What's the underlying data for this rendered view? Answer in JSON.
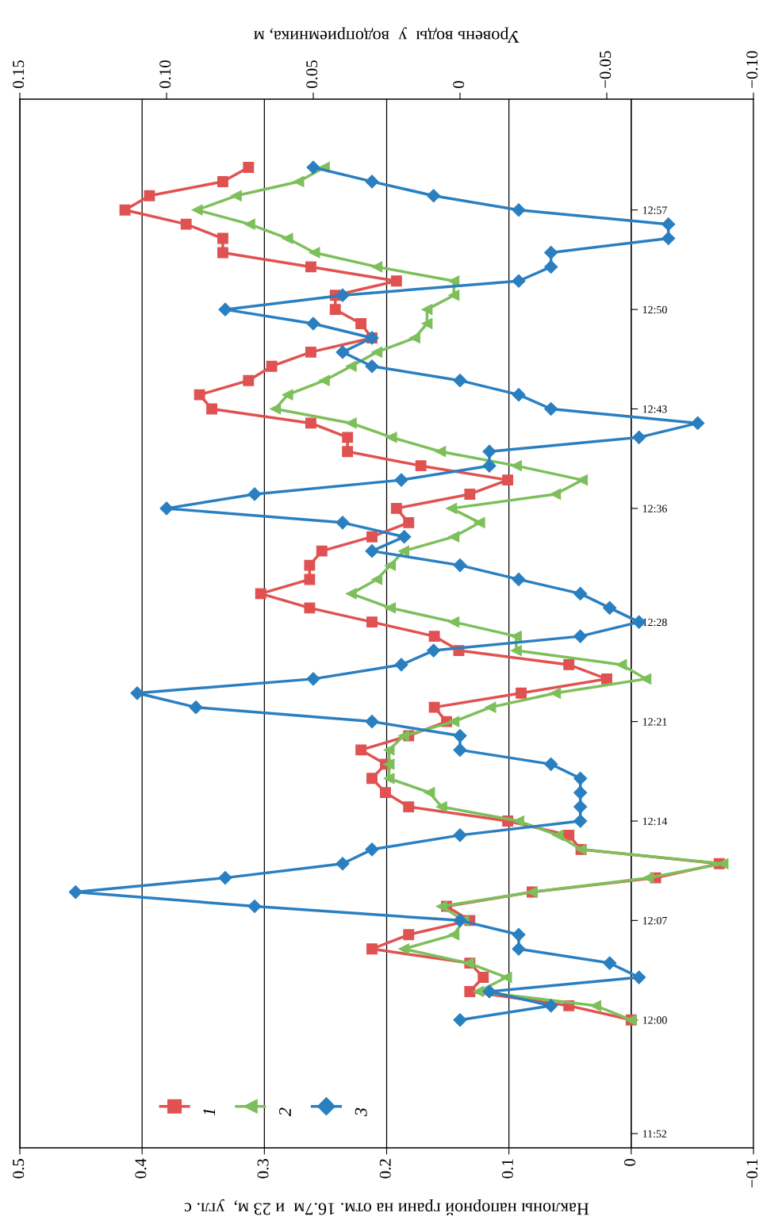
{
  "chart_data": {
    "type": "line",
    "xlabel": "Наклоны напорной грани на отм. 16.7м  и 23 м,  угл. с",
    "x2label": "Уровень воды  у  водоприемника, м",
    "series": [
      {
        "name": "1",
        "color": "#e05252",
        "marker": "square",
        "x": [
          0.0,
          0.051,
          0.132,
          0.121,
          0.132,
          0.212,
          0.182,
          0.132,
          0.151,
          0.081,
          -0.02,
          -0.072,
          0.041,
          0.051,
          0.101,
          0.182,
          0.201,
          0.212,
          0.201,
          0.221,
          0.182,
          0.151,
          0.161,
          0.09,
          0.02,
          0.051,
          0.141,
          0.161,
          0.212,
          0.263,
          0.303,
          0.263,
          0.263,
          0.253,
          0.212,
          0.182,
          0.192,
          0.132,
          0.101,
          0.172,
          0.232,
          0.232,
          0.262,
          0.343,
          0.353,
          0.313,
          0.294,
          0.262,
          0.212,
          0.221,
          0.242,
          0.242,
          0.192,
          0.262,
          0.334,
          0.334,
          0.364,
          0.414,
          0.394,
          0.334,
          0.313
        ],
        "values": [
          12.0,
          12.0167,
          12.0333,
          12.05,
          12.0667,
          12.0833,
          12.1,
          12.1167,
          12.1333,
          12.15,
          12.1667,
          12.1833,
          12.2,
          12.2167,
          12.2333,
          12.25,
          12.2667,
          12.2833,
          12.3,
          12.3167,
          12.3333,
          12.35,
          12.3667,
          12.3833,
          12.4,
          12.4167,
          12.4333,
          12.45,
          12.4667,
          12.4833,
          12.5,
          12.5167,
          12.5333,
          12.55,
          12.5667,
          12.5833,
          12.6,
          12.6167,
          12.6333,
          12.65,
          12.6667,
          12.6833,
          12.7,
          12.7167,
          12.7333,
          12.75,
          12.7667,
          12.7833,
          12.8,
          12.8167,
          12.8333,
          12.85,
          12.8667,
          12.8833,
          12.9,
          12.9167,
          12.9333,
          12.95,
          12.9667,
          12.9833,
          13.0
        ]
      },
      {
        "name": "2",
        "color": "#7dbf5a",
        "marker": "triangle",
        "x": [
          0.0,
          0.029,
          0.125,
          0.102,
          0.133,
          0.186,
          0.145,
          0.137,
          0.155,
          0.081,
          -0.014,
          -0.075,
          0.041,
          0.06,
          0.092,
          0.155,
          0.165,
          0.198,
          0.198,
          0.198,
          0.186,
          0.145,
          0.115,
          0.062,
          -0.012,
          0.008,
          0.094,
          0.094,
          0.145,
          0.197,
          0.229,
          0.208,
          0.197,
          0.186,
          0.145,
          0.124,
          0.147,
          0.062,
          0.04,
          0.094,
          0.156,
          0.196,
          0.229,
          0.291,
          0.281,
          0.251,
          0.229,
          0.208,
          0.177,
          0.167,
          0.167,
          0.145,
          0.145,
          0.208,
          0.259,
          0.281,
          0.312,
          0.355,
          0.323,
          0.272,
          0.251
        ],
        "values": [
          12.0,
          12.0167,
          12.0333,
          12.05,
          12.0667,
          12.0833,
          12.1,
          12.1167,
          12.1333,
          12.15,
          12.1667,
          12.1833,
          12.2,
          12.2167,
          12.2333,
          12.25,
          12.2667,
          12.2833,
          12.3,
          12.3167,
          12.3333,
          12.35,
          12.3667,
          12.3833,
          12.4,
          12.4167,
          12.4333,
          12.45,
          12.4667,
          12.4833,
          12.5,
          12.5167,
          12.5333,
          12.55,
          12.5667,
          12.5833,
          12.6,
          12.6167,
          12.6333,
          12.65,
          12.6667,
          12.6833,
          12.7,
          12.7167,
          12.7333,
          12.75,
          12.7667,
          12.7833,
          12.8,
          12.8167,
          12.8333,
          12.85,
          12.8667,
          12.8833,
          12.9,
          12.9167,
          12.9333,
          12.95,
          12.9667,
          12.9833,
          13.0
        ]
      },
      {
        "name": "3",
        "color": "#2a7fc1",
        "marker": "diamond",
        "axis": "x2",
        "x": [
          0.0,
          -0.031,
          -0.01,
          -0.061,
          -0.051,
          -0.02,
          -0.02,
          0.0,
          0.07,
          0.131,
          0.08,
          0.04,
          0.03,
          0.0,
          -0.041,
          -0.041,
          -0.041,
          -0.041,
          -0.031,
          0.0,
          0.0,
          0.03,
          0.09,
          0.11,
          0.05,
          0.02,
          0.009,
          -0.041,
          -0.061,
          -0.051,
          -0.041,
          -0.02,
          0.0,
          0.03,
          0.019,
          0.04,
          0.1,
          0.07,
          0.02,
          -0.01,
          -0.01,
          -0.061,
          -0.081,
          -0.031,
          -0.02,
          0.0,
          0.03,
          0.04,
          0.03,
          0.05,
          0.08,
          0.04,
          -0.02,
          -0.031,
          -0.031,
          -0.071,
          -0.071,
          -0.02,
          0.009,
          0.03,
          0.05
        ],
        "values": [
          12.0,
          12.0167,
          12.0333,
          12.05,
          12.0667,
          12.0833,
          12.1,
          12.1167,
          12.1333,
          12.15,
          12.1667,
          12.1833,
          12.2,
          12.2167,
          12.2333,
          12.25,
          12.2667,
          12.2833,
          12.3,
          12.3167,
          12.3333,
          12.35,
          12.3667,
          12.3833,
          12.4,
          12.4167,
          12.4333,
          12.45,
          12.4667,
          12.4833,
          12.5,
          12.5167,
          12.5333,
          12.55,
          12.5667,
          12.5833,
          12.6,
          12.6167,
          12.6333,
          12.65,
          12.6667,
          12.6833,
          12.7,
          12.7167,
          12.7333,
          12.75,
          12.7667,
          12.7833,
          12.8,
          12.8167,
          12.8333,
          12.85,
          12.8667,
          12.8833,
          12.9,
          12.9167,
          12.9333,
          12.95,
          12.9667,
          12.9833,
          13.0
        ]
      }
    ],
    "xlim": [
      0.5,
      -0.1
    ],
    "xticks": [
      0.5,
      0.4,
      0.3,
      0.2,
      0.1,
      0,
      {
        "value": -0.1,
        "label": "−0.1"
      }
    ],
    "x2lim": [
      0.15,
      -0.1
    ],
    "x2ticks": [
      0.15,
      {
        "value": 0.1,
        "label": "0.10"
      },
      0.05,
      0,
      {
        "value": -0.05,
        "label": "−0.05"
      },
      {
        "value": -0.1,
        "label": "−0.10"
      }
    ],
    "ylim": [
      11.85,
      13.08
    ],
    "yticks": [
      {
        "value": 11.8667,
        "label": "11:52"
      },
      {
        "value": 12.0,
        "label": "12:00"
      },
      {
        "value": 12.1167,
        "label": "12:07"
      },
      {
        "value": 12.2333,
        "label": "12:14"
      },
      {
        "value": 12.35,
        "label": "12:21"
      },
      {
        "value": 12.4667,
        "label": "12:28"
      },
      {
        "value": 12.6,
        "label": "12:36"
      },
      {
        "value": 12.7167,
        "label": "12:43"
      },
      {
        "value": 12.8333,
        "label": "12:50"
      },
      {
        "value": 12.95,
        "label": "12:57"
      }
    ],
    "grid": "x",
    "legend": "bottom left",
    "line_style": "solid"
  }
}
